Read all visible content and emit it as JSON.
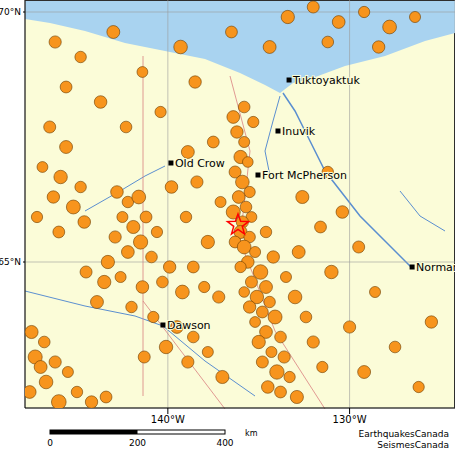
{
  "chart_data": {
    "type": "scatter",
    "xlim": [
      -147.86,
      -124.2
    ],
    "ylim": [
      62.08,
      70.24
    ],
    "xticks": [
      {
        "value": -140,
        "label": "140°W"
      },
      {
        "value": -130,
        "label": "130°W"
      }
    ],
    "yticks": [
      {
        "value": 65,
        "label": "65°N"
      },
      {
        "value": 70,
        "label": "70°N"
      }
    ],
    "grid": true,
    "color": "#f7941d",
    "marker": "circle",
    "quakes": [
      {
        "lon": -136.2,
        "lat": 67.6,
        "mag": 3.1
      },
      {
        "lon": -135.8,
        "lat": 67.4,
        "mag": 2.4
      },
      {
        "lon": -136.0,
        "lat": 67.1,
        "mag": 3.6
      },
      {
        "lon": -135.6,
        "lat": 67.0,
        "mag": 2.2
      },
      {
        "lon": -136.3,
        "lat": 66.8,
        "mag": 2.9
      },
      {
        "lon": -135.9,
        "lat": 66.6,
        "mag": 3.8
      },
      {
        "lon": -135.5,
        "lat": 66.4,
        "mag": 2.5
      },
      {
        "lon": -136.1,
        "lat": 66.3,
        "mag": 3.3
      },
      {
        "lon": -135.7,
        "lat": 66.1,
        "mag": 2.7
      },
      {
        "lon": -136.4,
        "lat": 66.0,
        "mag": 4.1
      },
      {
        "lon": -135.4,
        "lat": 65.9,
        "mag": 2.3
      },
      {
        "lon": -135.9,
        "lat": 65.8,
        "mag": 3.0
      },
      {
        "lon": -136.0,
        "lat": 65.6,
        "mag": 3.5
      },
      {
        "lon": -135.5,
        "lat": 65.5,
        "mag": 2.6
      },
      {
        "lon": -136.3,
        "lat": 65.4,
        "mag": 2.8
      },
      {
        "lon": -135.8,
        "lat": 65.3,
        "mag": 3.9
      },
      {
        "lon": -135.2,
        "lat": 65.2,
        "mag": 2.4
      },
      {
        "lon": -135.6,
        "lat": 65.0,
        "mag": 3.2
      },
      {
        "lon": -136.0,
        "lat": 64.9,
        "mag": 2.5
      },
      {
        "lon": -134.9,
        "lat": 64.8,
        "mag": 4.4
      },
      {
        "lon": -135.4,
        "lat": 64.6,
        "mag": 2.9
      },
      {
        "lon": -134.6,
        "lat": 64.5,
        "mag": 3.4
      },
      {
        "lon": -135.8,
        "lat": 64.4,
        "mag": 2.2
      },
      {
        "lon": -135.1,
        "lat": 64.3,
        "mag": 3.7
      },
      {
        "lon": -134.4,
        "lat": 64.2,
        "mag": 2.6
      },
      {
        "lon": -135.5,
        "lat": 64.1,
        "mag": 3.1
      },
      {
        "lon": -134.8,
        "lat": 64.0,
        "mag": 2.8
      },
      {
        "lon": -134.1,
        "lat": 63.9,
        "mag": 4.0
      },
      {
        "lon": -135.2,
        "lat": 63.8,
        "mag": 2.3
      },
      {
        "lon": -134.6,
        "lat": 63.6,
        "mag": 3.3
      },
      {
        "lon": -133.8,
        "lat": 63.5,
        "mag": 2.7
      },
      {
        "lon": -135.0,
        "lat": 63.4,
        "mag": 3.6
      },
      {
        "lon": -134.3,
        "lat": 63.2,
        "mag": 2.4
      },
      {
        "lon": -133.6,
        "lat": 63.1,
        "mag": 3.0
      },
      {
        "lon": -134.8,
        "lat": 63.0,
        "mag": 2.9
      },
      {
        "lon": -134.0,
        "lat": 62.8,
        "mag": 4.3
      },
      {
        "lon": -133.3,
        "lat": 62.7,
        "mag": 2.5
      },
      {
        "lon": -134.5,
        "lat": 62.5,
        "mag": 3.2
      },
      {
        "lon": -133.8,
        "lat": 62.4,
        "mag": 2.8
      },
      {
        "lon": -132.9,
        "lat": 62.3,
        "mag": 3.5
      },
      {
        "lon": -134.6,
        "lat": 65.6,
        "mag": 2.6
      },
      {
        "lon": -134.2,
        "lat": 65.1,
        "mag": 3.1
      },
      {
        "lon": -133.5,
        "lat": 64.7,
        "mag": 2.4
      },
      {
        "lon": -133.0,
        "lat": 64.3,
        "mag": 3.8
      },
      {
        "lon": -132.4,
        "lat": 63.9,
        "mag": 2.7
      },
      {
        "lon": -132.0,
        "lat": 63.4,
        "mag": 3.0
      },
      {
        "lon": -131.5,
        "lat": 62.9,
        "mag": 2.5
      },
      {
        "lon": -132.8,
        "lat": 65.2,
        "mag": 3.4
      },
      {
        "lon": -142.8,
        "lat": 66.4,
        "mag": 3.2
      },
      {
        "lon": -142.2,
        "lat": 66.2,
        "mag": 2.6
      },
      {
        "lon": -141.6,
        "lat": 66.3,
        "mag": 3.9
      },
      {
        "lon": -142.5,
        "lat": 65.9,
        "mag": 2.4
      },
      {
        "lon": -141.9,
        "lat": 65.7,
        "mag": 3.5
      },
      {
        "lon": -141.2,
        "lat": 65.9,
        "mag": 2.8
      },
      {
        "lon": -142.9,
        "lat": 65.5,
        "mag": 3.0
      },
      {
        "lon": -141.5,
        "lat": 65.4,
        "mag": 4.2
      },
      {
        "lon": -140.6,
        "lat": 65.6,
        "mag": 2.5
      },
      {
        "lon": -142.2,
        "lat": 65.2,
        "mag": 3.3
      },
      {
        "lon": -140.9,
        "lat": 65.1,
        "mag": 2.7
      },
      {
        "lon": -143.3,
        "lat": 65.0,
        "mag": 3.6
      },
      {
        "lon": -146.5,
        "lat": 67.7,
        "mag": 2.9
      },
      {
        "lon": -145.6,
        "lat": 67.3,
        "mag": 3.4
      },
      {
        "lon": -146.9,
        "lat": 66.9,
        "mag": 2.3
      },
      {
        "lon": -145.9,
        "lat": 66.7,
        "mag": 3.7
      },
      {
        "lon": -144.8,
        "lat": 66.5,
        "mag": 2.6
      },
      {
        "lon": -146.3,
        "lat": 66.3,
        "mag": 3.1
      },
      {
        "lon": -145.2,
        "lat": 66.1,
        "mag": 4.0
      },
      {
        "lon": -147.2,
        "lat": 65.9,
        "mag": 2.5
      },
      {
        "lon": -144.6,
        "lat": 65.8,
        "mag": 3.2
      },
      {
        "lon": -146.0,
        "lat": 65.6,
        "mag": 2.8
      },
      {
        "lon": -147.5,
        "lat": 63.6,
        "mag": 3.5
      },
      {
        "lon": -146.8,
        "lat": 63.4,
        "mag": 2.7
      },
      {
        "lon": -147.3,
        "lat": 63.1,
        "mag": 4.1
      },
      {
        "lon": -146.2,
        "lat": 63.0,
        "mag": 3.0
      },
      {
        "lon": -145.5,
        "lat": 62.8,
        "mag": 2.4
      },
      {
        "lon": -146.7,
        "lat": 62.6,
        "mag": 3.8
      },
      {
        "lon": -147.6,
        "lat": 62.4,
        "mag": 3.3
      },
      {
        "lon": -145.0,
        "lat": 62.4,
        "mag": 2.6
      },
      {
        "lon": -144.2,
        "lat": 62.2,
        "mag": 3.1
      },
      {
        "lon": -146.0,
        "lat": 62.2,
        "mag": 4.5
      },
      {
        "lon": -143.4,
        "lat": 62.3,
        "mag": 2.8
      },
      {
        "lon": -147.0,
        "lat": 62.9,
        "mag": 3.4
      },
      {
        "lon": -144.5,
        "lat": 64.8,
        "mag": 2.9
      },
      {
        "lon": -143.5,
        "lat": 64.6,
        "mag": 3.6
      },
      {
        "lon": -142.6,
        "lat": 64.7,
        "mag": 2.4
      },
      {
        "lon": -141.4,
        "lat": 64.5,
        "mag": 3.2
      },
      {
        "lon": -140.3,
        "lat": 64.6,
        "mag": 2.7
      },
      {
        "lon": -139.2,
        "lat": 64.4,
        "mag": 3.9
      },
      {
        "lon": -138.0,
        "lat": 64.5,
        "mag": 2.5
      },
      {
        "lon": -137.2,
        "lat": 64.3,
        "mag": 3.0
      },
      {
        "lon": -143.9,
        "lat": 64.2,
        "mag": 3.4
      },
      {
        "lon": -142.0,
        "lat": 64.1,
        "mag": 2.6
      },
      {
        "lon": -139.9,
        "lat": 64.9,
        "mag": 3.1
      },
      {
        "lon": -138.6,
        "lat": 64.9,
        "mag": 2.8
      },
      {
        "lon": -140.8,
        "lat": 63.9,
        "mag": 2.5
      },
      {
        "lon": -139.5,
        "lat": 63.7,
        "mag": 3.3
      },
      {
        "lon": -138.6,
        "lat": 63.5,
        "mag": 2.7
      },
      {
        "lon": -140.1,
        "lat": 63.3,
        "mag": 3.7
      },
      {
        "lon": -137.8,
        "lat": 63.2,
        "mag": 2.4
      },
      {
        "lon": -138.9,
        "lat": 63.0,
        "mag": 3.0
      },
      {
        "lon": -141.3,
        "lat": 63.1,
        "mag": 2.9
      },
      {
        "lon": -137.0,
        "lat": 62.7,
        "mag": 3.5
      },
      {
        "lon": -146.2,
        "lat": 69.4,
        "mag": 3.0
      },
      {
        "lon": -144.8,
        "lat": 69.1,
        "mag": 2.6
      },
      {
        "lon": -143.0,
        "lat": 69.6,
        "mag": 3.4
      },
      {
        "lon": -141.4,
        "lat": 68.8,
        "mag": 2.3
      },
      {
        "lon": -139.3,
        "lat": 69.3,
        "mag": 3.8
      },
      {
        "lon": -145.6,
        "lat": 68.5,
        "mag": 2.8
      },
      {
        "lon": -143.7,
        "lat": 68.2,
        "mag": 3.2
      },
      {
        "lon": -140.4,
        "lat": 68.0,
        "mag": 2.5
      },
      {
        "lon": -138.5,
        "lat": 68.6,
        "mag": 3.1
      },
      {
        "lon": -142.3,
        "lat": 67.7,
        "mag": 2.7
      },
      {
        "lon": -133.4,
        "lat": 69.9,
        "mag": 3.6
      },
      {
        "lon": -132.0,
        "lat": 70.1,
        "mag": 2.9
      },
      {
        "lon": -130.6,
        "lat": 69.8,
        "mag": 3.3
      },
      {
        "lon": -129.2,
        "lat": 70.0,
        "mag": 2.5
      },
      {
        "lon": -127.8,
        "lat": 69.7,
        "mag": 3.9
      },
      {
        "lon": -131.2,
        "lat": 69.4,
        "mag": 2.7
      },
      {
        "lon": -128.4,
        "lat": 69.3,
        "mag": 3.1
      },
      {
        "lon": -126.4,
        "lat": 69.9,
        "mag": 2.4
      },
      {
        "lon": -134.4,
        "lat": 69.3,
        "mag": 3.4
      },
      {
        "lon": -136.5,
        "lat": 69.6,
        "mag": 2.8
      },
      {
        "lon": -131.2,
        "lat": 66.8,
        "mag": 2.6
      },
      {
        "lon": -130.4,
        "lat": 66.0,
        "mag": 3.2
      },
      {
        "lon": -129.5,
        "lat": 65.3,
        "mag": 2.9
      },
      {
        "lon": -131.0,
        "lat": 64.8,
        "mag": 3.7
      },
      {
        "lon": -128.6,
        "lat": 64.4,
        "mag": 2.4
      },
      {
        "lon": -130.0,
        "lat": 63.7,
        "mag": 3.0
      },
      {
        "lon": -127.5,
        "lat": 63.3,
        "mag": 2.7
      },
      {
        "lon": -129.2,
        "lat": 62.8,
        "mag": 3.4
      },
      {
        "lon": -126.2,
        "lat": 62.5,
        "mag": 2.5
      },
      {
        "lon": -125.5,
        "lat": 63.8,
        "mag": 3.1
      },
      {
        "lon": -131.6,
        "lat": 65.7,
        "mag": 2.8
      },
      {
        "lon": -132.6,
        "lat": 66.3,
        "mag": 3.5
      },
      {
        "lon": -135.8,
        "lat": 68.1,
        "mag": 2.7
      },
      {
        "lon": -136.4,
        "lat": 67.9,
        "mag": 3.3
      },
      {
        "lon": -135.3,
        "lat": 67.8,
        "mag": 2.5
      },
      {
        "lon": -138.4,
        "lat": 66.6,
        "mag": 3.0
      },
      {
        "lon": -139.0,
        "lat": 65.9,
        "mag": 2.6
      },
      {
        "lon": -137.8,
        "lat": 65.4,
        "mag": 3.6
      },
      {
        "lon": -137.1,
        "lat": 66.2,
        "mag": 2.4
      },
      {
        "lon": -139.8,
        "lat": 66.5,
        "mag": 3.2
      },
      {
        "lon": -137.5,
        "lat": 67.4,
        "mag": 2.8
      },
      {
        "lon": -138.9,
        "lat": 67.2,
        "mag": 3.4
      }
    ],
    "places": [
      {
        "name": "Tuktoyaktuk",
        "lon": -133.33,
        "lat": 68.64
      },
      {
        "name": "Inuvik",
        "lon": -133.94,
        "lat": 67.62
      },
      {
        "name": "Old Crow",
        "lon": -139.83,
        "lat": 66.98
      },
      {
        "name": "Fort McPherson",
        "lon": -135.04,
        "lat": 66.74
      },
      {
        "name": "Norman",
        "lon": -126.56,
        "lat": 64.9
      },
      {
        "name": "Dawson",
        "lon": -140.27,
        "lat": 63.74
      }
    ],
    "epicenter": {
      "lon": -136.14,
      "lat": 65.74,
      "color": "#ff0000",
      "marker": "star"
    },
    "scale_bar": {
      "ticks": [
        0,
        200,
        400
      ],
      "unit": "km"
    },
    "credit": [
      "EarthquakesCanada",
      "SeismesCanada"
    ]
  }
}
